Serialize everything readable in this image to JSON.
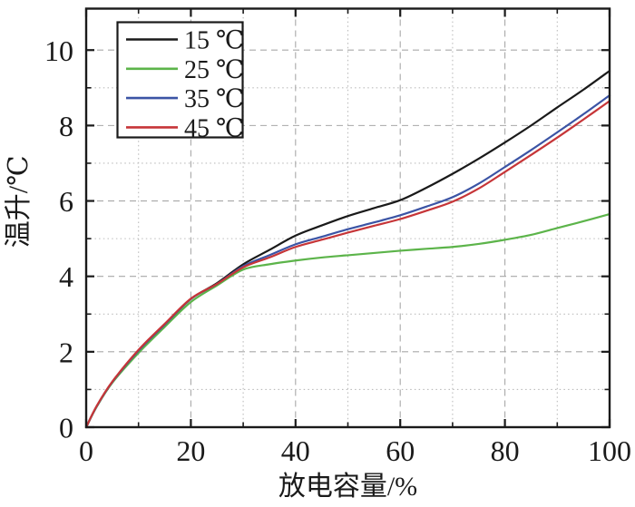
{
  "figure": {
    "background": "#ffffff",
    "axis_color": "#1a1a1a",
    "grid_major_color": "#a8a8a8",
    "grid_minor_color": "#bcbcbc",
    "legend_border_color": "#1a1a1a"
  },
  "chart_data": {
    "type": "line",
    "title": "",
    "xlabel": "放电容量/%",
    "ylabel": "温升/℃",
    "xlim": [
      0,
      100
    ],
    "ylim": [
      0,
      11.1
    ],
    "x_major_ticks": [
      0,
      20,
      40,
      60,
      80,
      100
    ],
    "x_minor_ticks": [
      10,
      30,
      50,
      70,
      90
    ],
    "y_major_ticks": [
      0,
      2,
      4,
      6,
      8,
      10
    ],
    "y_minor_ticks": [
      1,
      3,
      5,
      7,
      9
    ],
    "grid": true,
    "grid_style": {
      "major": "dashed",
      "minor": "dotted"
    },
    "legend_position": "top-left",
    "x": [
      0,
      2,
      5,
      10,
      15,
      20,
      25,
      30,
      35,
      40,
      45,
      50,
      55,
      60,
      65,
      70,
      75,
      80,
      85,
      90,
      95,
      100
    ],
    "series": [
      {
        "name": "15 ℃",
        "color": "#1a1a1a",
        "values": [
          0,
          0.55,
          1.2,
          2.03,
          2.72,
          3.4,
          3.82,
          4.32,
          4.7,
          5.08,
          5.35,
          5.6,
          5.81,
          6.02,
          6.35,
          6.72,
          7.12,
          7.55,
          8.0,
          8.48,
          8.95,
          9.45
        ]
      },
      {
        "name": "25 ℃",
        "color": "#5cb44a",
        "values": [
          0,
          0.54,
          1.18,
          1.97,
          2.66,
          3.32,
          3.76,
          4.18,
          4.32,
          4.42,
          4.5,
          4.56,
          4.62,
          4.68,
          4.73,
          4.78,
          4.86,
          4.97,
          5.1,
          5.28,
          5.46,
          5.65
        ]
      },
      {
        "name": "35 ℃",
        "color": "#3b54a5",
        "values": [
          0,
          0.55,
          1.2,
          2.03,
          2.72,
          3.4,
          3.8,
          4.27,
          4.56,
          4.85,
          5.05,
          5.25,
          5.43,
          5.62,
          5.85,
          6.1,
          6.46,
          6.9,
          7.35,
          7.82,
          8.3,
          8.8
        ]
      },
      {
        "name": "45 ℃",
        "color": "#c63538",
        "values": [
          0,
          0.56,
          1.21,
          2.05,
          2.74,
          3.41,
          3.8,
          4.24,
          4.5,
          4.78,
          4.97,
          5.16,
          5.34,
          5.52,
          5.74,
          5.98,
          6.33,
          6.77,
          7.22,
          7.68,
          8.16,
          8.65
        ]
      }
    ]
  }
}
